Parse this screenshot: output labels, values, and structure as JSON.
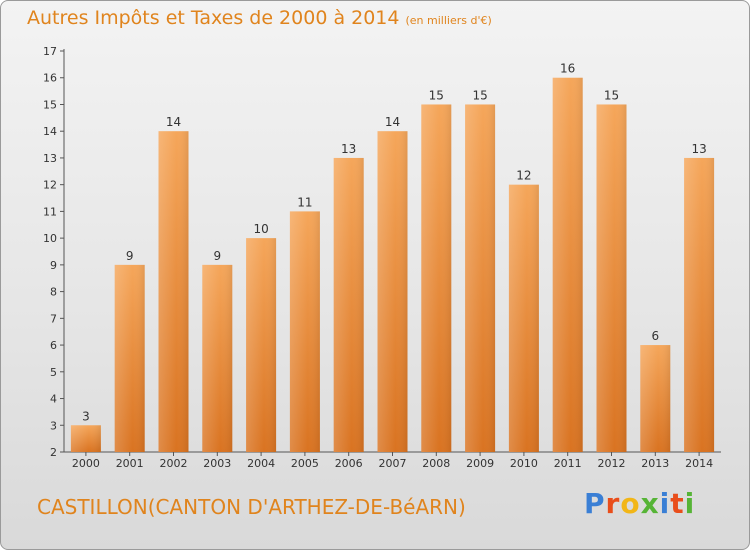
{
  "title": "Autres Impôts et Taxes de 2000 à 2014",
  "unit": "(en milliers d'€)",
  "commune": "CASTILLON(CANTON D'ARTHEZ-DE-BéARN)",
  "brand": "Proxiti",
  "brand_colors": [
    "#3a7fd5",
    "#e94e1b",
    "#f2b617",
    "#56b436",
    "#3a7fd5",
    "#e94e1b",
    "#56b436"
  ],
  "chart_data": {
    "type": "bar",
    "title": "Autres Impôts et Taxes de 2000 à 2014",
    "subtitle": "(en milliers d'€)",
    "xlabel": "",
    "ylabel": "",
    "categories": [
      "2000",
      "2001",
      "2002",
      "2003",
      "2004",
      "2005",
      "2006",
      "2007",
      "2008",
      "2009",
      "2010",
      "2011",
      "2012",
      "2013",
      "2014"
    ],
    "values": [
      3,
      9,
      14,
      9,
      10,
      11,
      13,
      14,
      15,
      15,
      12,
      16,
      15,
      6,
      13
    ],
    "ylim": [
      2,
      17
    ],
    "yticks": [
      2,
      3,
      4,
      5,
      6,
      7,
      8,
      9,
      10,
      11,
      12,
      13,
      14,
      15,
      16,
      17
    ],
    "grid": false,
    "bar_color_top": "#f5a65a",
    "bar_color_bottom": "#d97321"
  }
}
